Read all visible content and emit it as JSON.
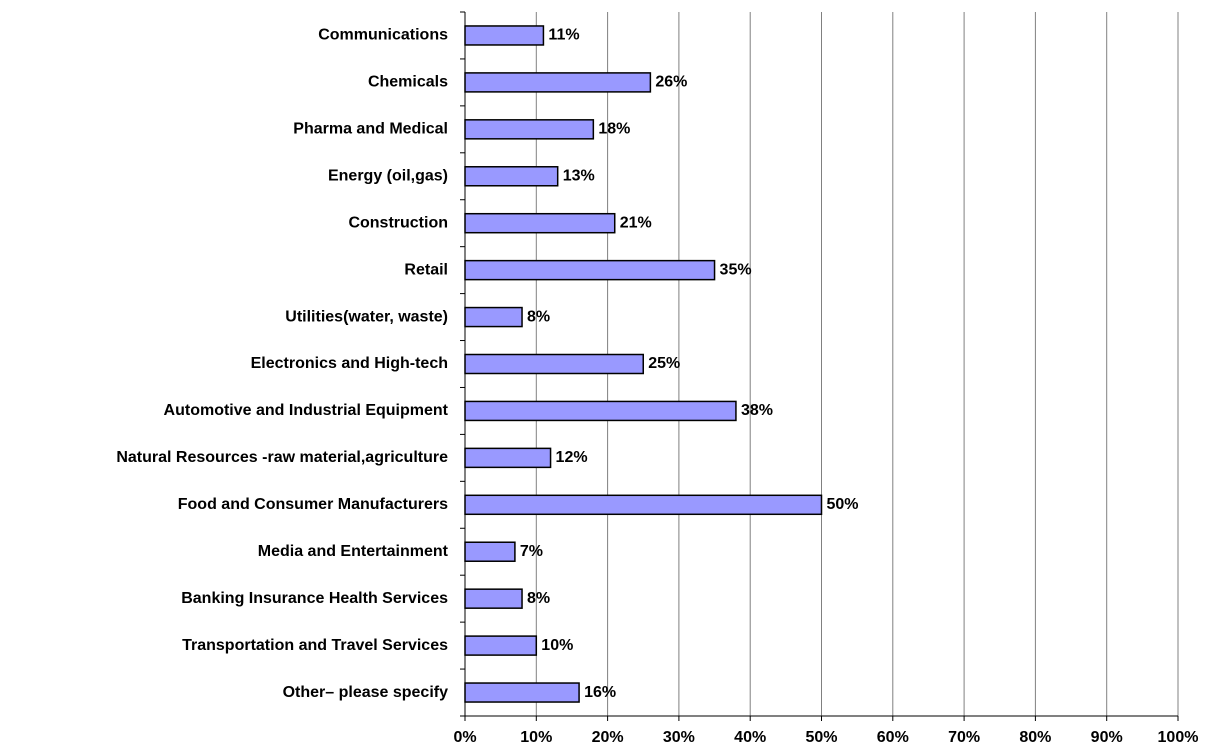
{
  "chart_data": {
    "type": "hbar",
    "categories": [
      "Communications",
      "Chemicals",
      "Pharma and Medical",
      "Energy (oil,gas)",
      "Construction",
      "Retail",
      "Utilities(water, waste)",
      "Electronics and High-tech",
      "Automotive and Industrial Equipment",
      "Natural Resources -raw material,agriculture",
      "Food and Consumer Manufacturers",
      "Media and Entertainment",
      "Banking Insurance Health Services",
      "Transportation and Travel Services",
      "Other– please specify"
    ],
    "values": [
      11,
      26,
      18,
      13,
      21,
      35,
      8,
      25,
      38,
      12,
      50,
      7,
      8,
      10,
      16
    ],
    "value_labels": [
      "11%",
      "26%",
      "18%",
      "13%",
      "21%",
      "35%",
      "8%",
      "25%",
      "38%",
      "12%",
      "50%",
      "7%",
      "8%",
      "10%",
      "16%"
    ],
    "color": "#9999ff",
    "xlim": [
      0,
      100
    ],
    "xticks": [
      {
        "value": 0,
        "label": "0%"
      },
      {
        "value": 10,
        "label": "10%"
      },
      {
        "value": 20,
        "label": "20%"
      },
      {
        "value": 30,
        "label": "30%"
      },
      {
        "value": 40,
        "label": "40%"
      },
      {
        "value": 50,
        "label": "50%"
      },
      {
        "value": 60,
        "label": "60%"
      },
      {
        "value": 70,
        "label": "70%"
      },
      {
        "value": 80,
        "label": "80%"
      },
      {
        "value": 90,
        "label": "90%"
      },
      {
        "value": 100,
        "label": "100%"
      }
    ],
    "grid": true
  }
}
